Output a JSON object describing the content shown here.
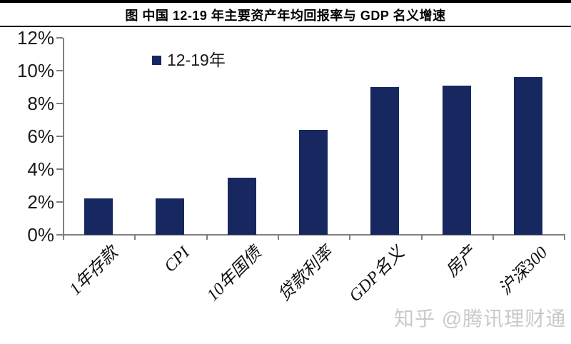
{
  "header": {
    "title": "图  中国 12-19 年主要资产年均回报率与 GDP 名义增速"
  },
  "watermark": "知乎 @腾讯理财通",
  "colors": {
    "bar": "#16285f",
    "axis": "#808080",
    "title": "#000000",
    "watermark": "#c9c9c9"
  },
  "chart_data": {
    "type": "bar",
    "title": "图 中国 12-19 年主要资产年均回报率与 GDP 名义增速",
    "categories": [
      "1年存款",
      "CPI",
      "10年国债",
      "贷款利率",
      "GDP名义",
      "房产",
      "沪深300"
    ],
    "values": [
      2.2,
      2.2,
      3.5,
      6.4,
      9.0,
      9.1,
      9.6
    ],
    "unit": "%",
    "xlabel": "",
    "ylabel": "",
    "ylim": [
      0,
      12
    ],
    "ytick_step": 2,
    "ytick_labels": [
      "0%",
      "2%",
      "4%",
      "6%",
      "8%",
      "10%",
      "12%"
    ],
    "grid": false,
    "legend": [
      "12-19年"
    ],
    "legend_position": "top-left-inside"
  }
}
